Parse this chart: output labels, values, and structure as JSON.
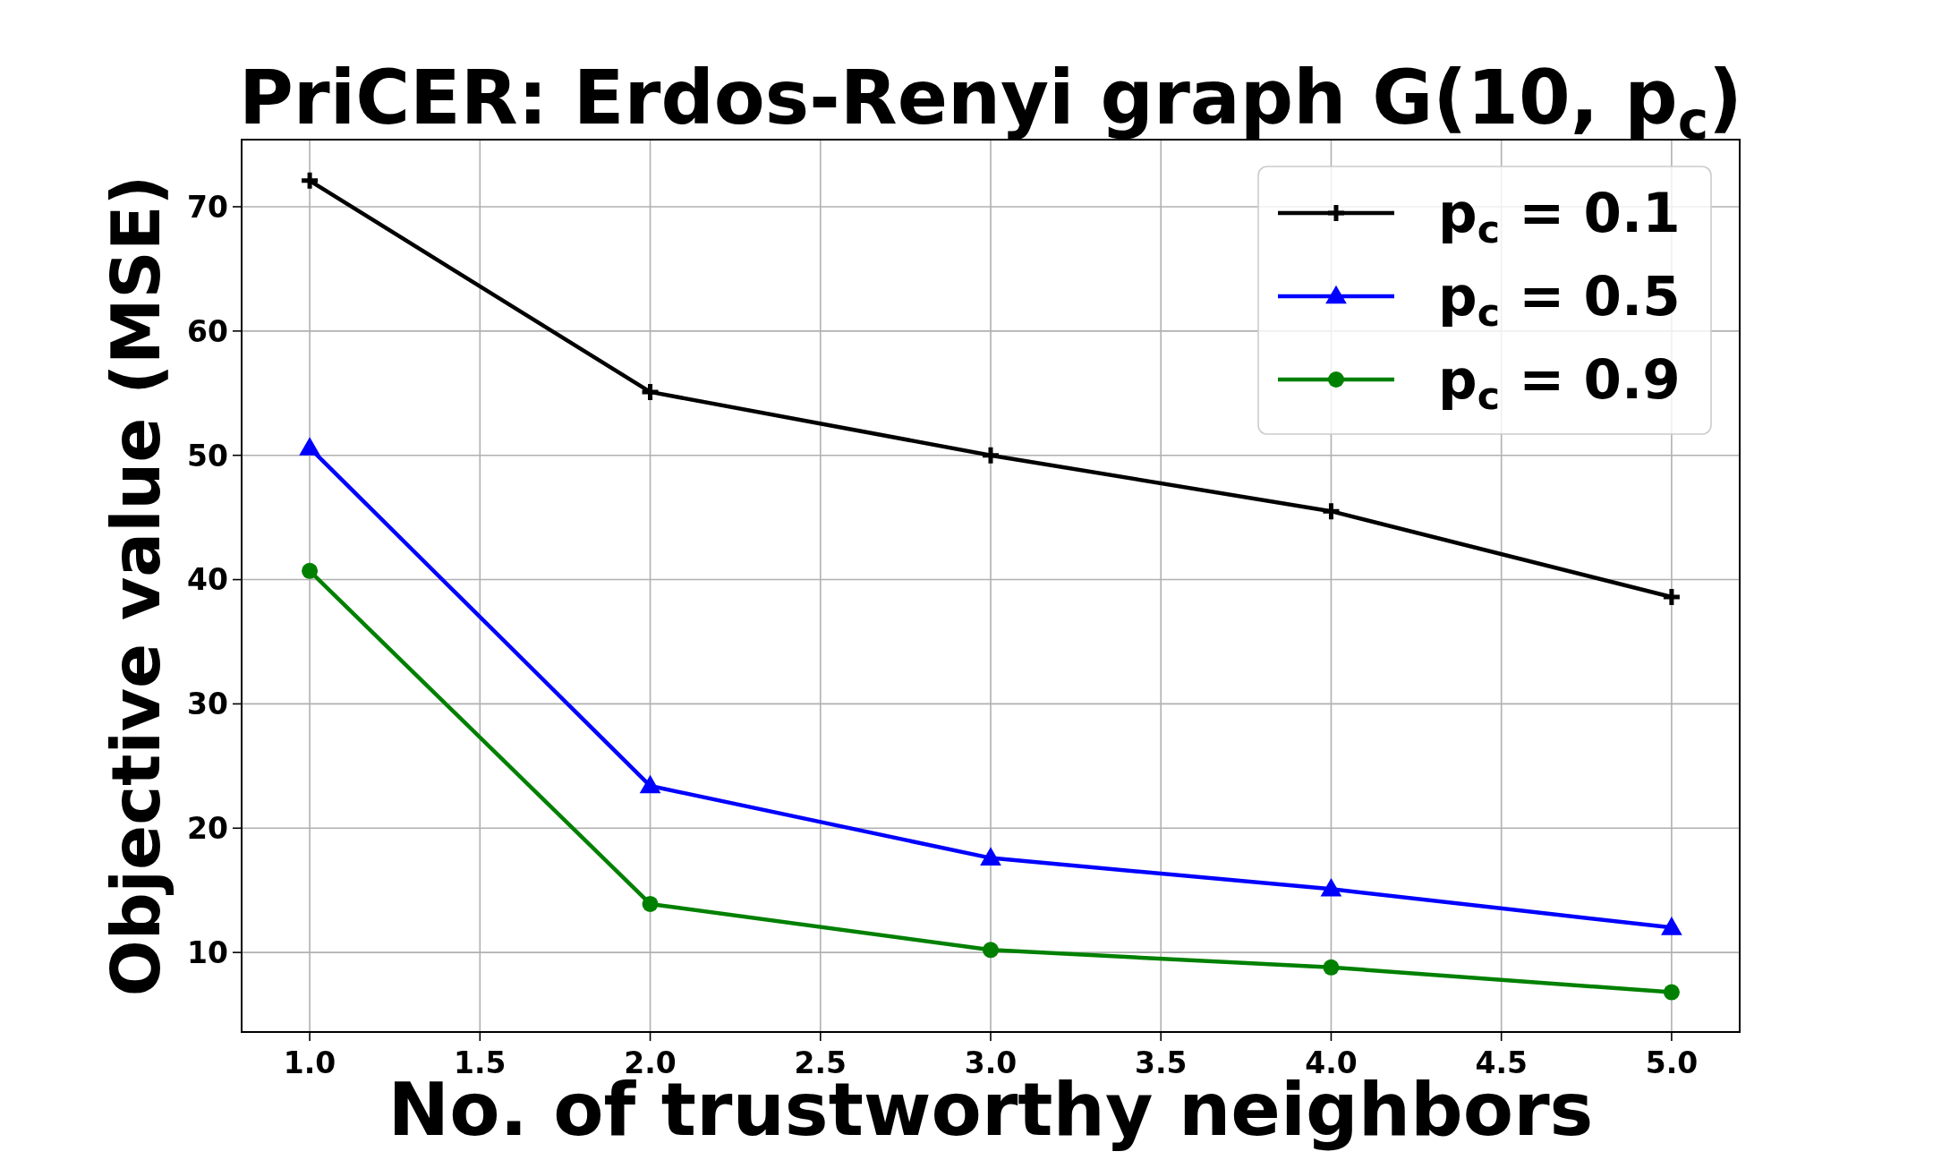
{
  "chart_data": {
    "type": "line",
    "title": "PriCER: Erdos-Renyi graph G(10, p$_{c}$)",
    "xlabel": "No. of trustworthy neighbors",
    "ylabel": "Objective value (MSE)",
    "x": [
      1,
      2,
      3,
      4,
      5
    ],
    "series": [
      {
        "name": "p$_{c}$ = 0.1",
        "color": "#000000",
        "marker": "cross",
        "values": [
          72.1,
          55.1,
          50.0,
          45.5,
          38.6
        ]
      },
      {
        "name": "p$_{c}$ = 0.5",
        "color": "#0000ff",
        "marker": "triangle",
        "values": [
          50.6,
          23.4,
          17.6,
          15.1,
          12.0
        ]
      },
      {
        "name": "p$_{c}$ = 0.9",
        "color": "#008000",
        "marker": "circle",
        "values": [
          40.7,
          13.9,
          10.2,
          8.8,
          6.8
        ]
      }
    ],
    "xlim": [
      0.8,
      5.2
    ],
    "xticks": [
      {
        "value": 1,
        "label": "1.0"
      },
      {
        "value": 1.5,
        "label": "1.5"
      },
      {
        "value": 2,
        "label": "2.0"
      },
      {
        "value": 2.5,
        "label": "2.5"
      },
      {
        "value": 3,
        "label": "3.0"
      },
      {
        "value": 3.5,
        "label": "3.5"
      },
      {
        "value": 4,
        "label": "4.0"
      },
      {
        "value": 4.5,
        "label": "4.5"
      },
      {
        "value": 5,
        "label": "5.0"
      }
    ],
    "ylim": [
      3.6,
      75.4
    ],
    "yticks": [
      10,
      20,
      30,
      40,
      50,
      60,
      70
    ],
    "grid": true,
    "legend": "top right",
    "line_style": "solid"
  }
}
